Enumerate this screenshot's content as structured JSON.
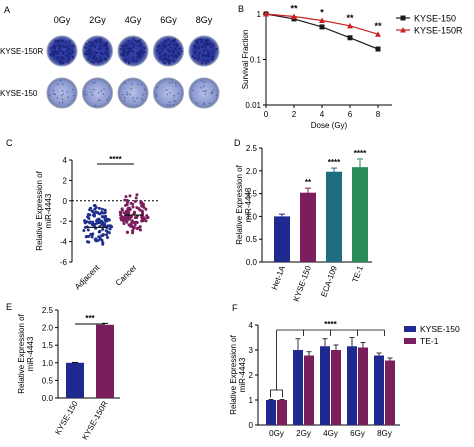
{
  "panels": {
    "A": {
      "letter": "A",
      "doses": [
        "0Gy",
        "2Gy",
        "4Gy",
        "6Gy",
        "8Gy"
      ],
      "rows": [
        "KYSE-150R",
        "KYSE-150"
      ],
      "dish_colors": {
        "dense": "#2d3ca6",
        "sparse": "#8c9ad0",
        "rim": "#9aa3b8"
      }
    }
  },
  "chart_data": [
    {
      "panel": "B",
      "type": "line",
      "yscale": "log",
      "ylabel": "Survival Fraction",
      "xlabel": "Dose (Gy)",
      "xlim": [
        0,
        9
      ],
      "ylim": [
        0.01,
        1
      ],
      "xticks": [
        "0",
        "2",
        "4",
        "6",
        "8"
      ],
      "yticks": [
        "0.01",
        "0.1",
        "1"
      ],
      "series": [
        {
          "name": "KYSE-150",
          "color": "#1a1a1a",
          "marker": "square",
          "x": [
            0,
            2,
            4,
            6,
            8
          ],
          "y": [
            1.0,
            0.78,
            0.52,
            0.3,
            0.17
          ]
        },
        {
          "name": "KYSE-150R",
          "color": "#cc2222",
          "marker": "triangle",
          "x": [
            0,
            2,
            4,
            6,
            8
          ],
          "y": [
            1.0,
            0.88,
            0.72,
            0.55,
            0.36
          ]
        }
      ],
      "annotations": [
        "**",
        "*",
        "**",
        "**"
      ],
      "legend_position": "top-right"
    },
    {
      "panel": "C",
      "type": "scatter",
      "ylabel": "Relative Expression of miR-4443",
      "categories": [
        "Adjacent",
        "Cancer"
      ],
      "ylim": [
        -6,
        4
      ],
      "yticks": [
        "-6",
        "-4",
        "-2",
        "0",
        "2",
        "4"
      ],
      "series": [
        {
          "name": "Adjacent",
          "color": "#1f2f8c",
          "mean": -2.6,
          "n": 110,
          "range": [
            -4.9,
            0.6
          ]
        },
        {
          "name": "Cancer",
          "color": "#7a1f5c",
          "mean": -1.4,
          "n": 110,
          "range": [
            -4.2,
            1.4
          ]
        }
      ],
      "significance": "****"
    },
    {
      "panel": "D",
      "type": "bar",
      "ylabel": "Relative Expression of miR-4443",
      "categories": [
        "Het-1A",
        "KYSE-150",
        "ECA-109",
        "TE-1"
      ],
      "values": [
        1.0,
        1.52,
        1.98,
        2.08
      ],
      "errors": [
        0.05,
        0.1,
        0.08,
        0.18
      ],
      "colors": [
        "#1e2a8f",
        "#7a1f5c",
        "#1f6d80",
        "#2b8a5a"
      ],
      "ylim": [
        0,
        2.5
      ],
      "yticks": [
        "0.0",
        "0.5",
        "1.0",
        "1.5",
        "2.0",
        "2.5"
      ],
      "significance": [
        "",
        "**",
        "****",
        "****"
      ]
    },
    {
      "panel": "E",
      "type": "bar",
      "ylabel": "Relative Expression of miR-4443",
      "categories": [
        "KYSE-150",
        "KYSE-150R"
      ],
      "values": [
        1.0,
        2.08
      ],
      "errors": [
        0.01,
        0.04
      ],
      "colors": [
        "#1e2a8f",
        "#7a1f5c"
      ],
      "ylim": [
        0,
        2.5
      ],
      "yticks": [
        "0.0",
        "0.5",
        "1.0",
        "1.5",
        "2.0",
        "2.5"
      ],
      "significance": "***"
    },
    {
      "panel": "F",
      "type": "bar",
      "ylabel": "Relative Expression of miR-4443",
      "categories": [
        "0Gy",
        "2Gy",
        "4Gy",
        "6Gy",
        "8Gy"
      ],
      "series": [
        {
          "name": "KYSE-150",
          "color": "#1e2a8f",
          "values": [
            1.0,
            3.0,
            3.15,
            3.15,
            2.78
          ],
          "errors": [
            0.02,
            0.45,
            0.3,
            0.35,
            0.1
          ]
        },
        {
          "name": "TE-1",
          "color": "#7a1f5c",
          "values": [
            1.0,
            2.78,
            3.0,
            3.1,
            2.58
          ],
          "errors": [
            0.02,
            0.15,
            0.2,
            0.2,
            0.1
          ]
        }
      ],
      "ylim": [
        0,
        4
      ],
      "yticks": [
        "0",
        "1",
        "2",
        "3",
        "4"
      ],
      "significance": "****",
      "legend_position": "top-right"
    }
  ]
}
